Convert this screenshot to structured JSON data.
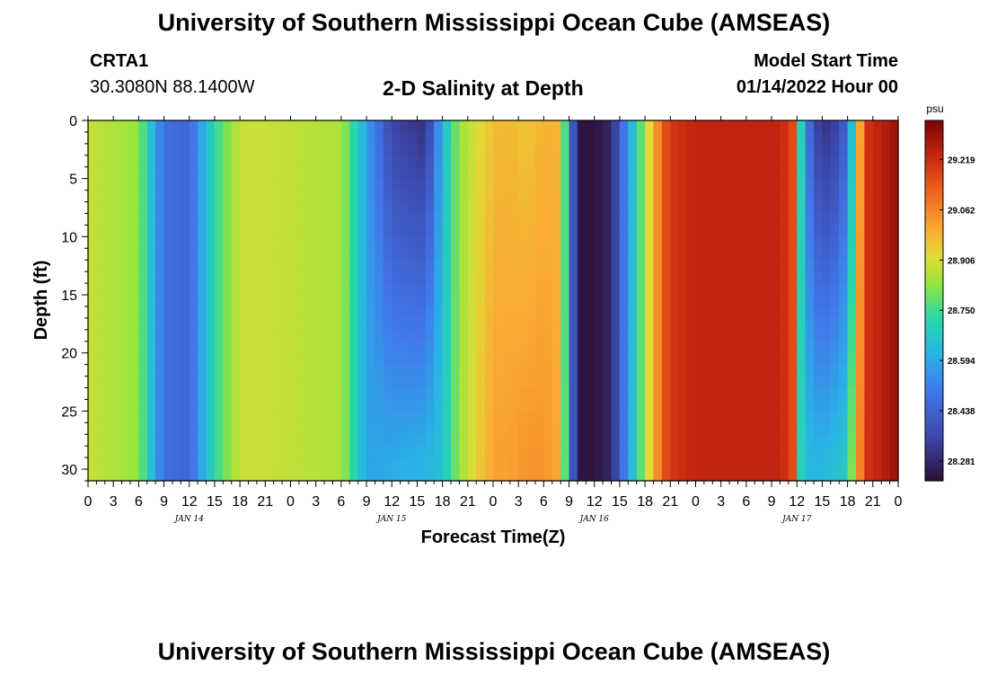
{
  "page": {
    "title": "University of Southern Mississippi Ocean Cube (AMSEAS)",
    "title_bottom": "University of Southern Mississippi Ocean Cube (AMSEAS)",
    "station": "CRTA1",
    "coords": "30.3080N  88.1400W",
    "subtitle": "2-D Salinity at Depth",
    "start_label": "Model Start Time",
    "start_value": "01/14/2022 Hour 00"
  },
  "chart_data": {
    "type": "heatmap",
    "title": "2-D Salinity at Depth",
    "xlabel": "Forecast Time(Z)",
    "ylabel": "Depth (ft)",
    "colorbar_unit": "psu",
    "colorbar_ticks": [
      "28.281",
      "28.438",
      "28.594",
      "28.750",
      "28.906",
      "29.062",
      "29.219"
    ],
    "value_range": [
      28.22,
      29.34
    ],
    "y_ticks": [
      0,
      5,
      10,
      15,
      20,
      25,
      30
    ],
    "ylim": [
      0,
      31
    ],
    "x_tick_labels": [
      "0",
      "3",
      "6",
      "9",
      "12",
      "15",
      "18",
      "21",
      "0",
      "3",
      "6",
      "9",
      "12",
      "15",
      "18",
      "21",
      "0",
      "3",
      "6",
      "9",
      "12",
      "15",
      "18",
      "21",
      "0",
      "3",
      "6",
      "9",
      "12",
      "15",
      "18",
      "21",
      "0"
    ],
    "x_day_labels": [
      "JAN 14",
      "JAN 15",
      "JAN 16",
      "JAN 17"
    ],
    "xlim_hours": [
      0,
      96
    ],
    "surface_profile": {
      "hours": [
        0,
        6,
        9,
        12,
        15,
        18,
        21,
        24,
        30,
        33,
        36,
        40,
        42,
        44,
        48,
        50,
        52,
        54,
        56,
        57,
        58,
        60,
        62,
        66,
        68,
        69,
        72,
        78,
        82,
        84,
        84.5,
        85,
        86,
        88,
        90,
        92,
        96
      ],
      "values": [
        28.89,
        28.83,
        28.47,
        28.45,
        28.73,
        28.89,
        28.89,
        28.88,
        28.86,
        28.58,
        28.35,
        28.3,
        28.62,
        28.84,
        28.97,
        28.98,
        28.95,
        28.99,
        28.98,
        28.55,
        28.24,
        28.23,
        28.28,
        28.85,
        29.12,
        29.2,
        29.24,
        29.24,
        29.24,
        29.14,
        28.7,
        28.56,
        28.35,
        28.3,
        28.45,
        29.2,
        29.3
      ]
    },
    "bottom_profile": {
      "hours": [
        0,
        6,
        9,
        12,
        15,
        18,
        21,
        24,
        30,
        33,
        36,
        40,
        42,
        44,
        48,
        50,
        52,
        54,
        56,
        57,
        58,
        60,
        62,
        66,
        68,
        69,
        72,
        78,
        82,
        84,
        84.5,
        85,
        86,
        88,
        90,
        92,
        96
      ],
      "values": [
        28.89,
        28.83,
        28.47,
        28.45,
        28.73,
        28.89,
        28.89,
        28.88,
        28.86,
        28.58,
        28.6,
        28.62,
        28.65,
        28.84,
        29.02,
        29.02,
        29.04,
        29.04,
        29.0,
        28.55,
        28.24,
        28.23,
        28.28,
        28.85,
        29.12,
        29.2,
        29.24,
        29.24,
        29.24,
        29.14,
        28.7,
        28.64,
        28.62,
        28.64,
        28.68,
        29.2,
        29.3
      ]
    }
  }
}
